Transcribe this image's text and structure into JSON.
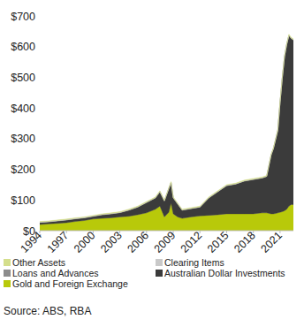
{
  "chart_data": {
    "type": "area",
    "stacked": true,
    "x": [
      1994,
      1995,
      1996,
      1997,
      1998,
      1999,
      2000,
      2001,
      2002,
      2003,
      2004,
      2005,
      2006,
      2007,
      2007.5,
      2008,
      2008.5,
      2008.75,
      2009,
      2009.5,
      2010,
      2011,
      2012,
      2013,
      2014,
      2015,
      2016,
      2017,
      2018,
      2019,
      2019.5,
      2020,
      2020.25,
      2020.5,
      2020.75,
      2021,
      2021.25,
      2021.5,
      2021.75,
      2022,
      2022.25,
      2022.5
    ],
    "xlim": [
      1994,
      2022.5
    ],
    "xticks": [
      1994,
      1997,
      2000,
      2003,
      2006,
      2009,
      2012,
      2015,
      2018,
      2021
    ],
    "ylim": [
      0,
      700
    ],
    "yticks": [
      {
        "value": 0,
        "label": "$0"
      },
      {
        "value": 100,
        "label": "$100"
      },
      {
        "value": 200,
        "label": "$200"
      },
      {
        "value": 300,
        "label": "$300"
      },
      {
        "value": 400,
        "label": "$400"
      },
      {
        "value": 500,
        "label": "$500"
      },
      {
        "value": 600,
        "label": "$600"
      },
      {
        "value": 700,
        "label": "$700"
      }
    ],
    "grid": false,
    "legend": "bottom",
    "series": [
      {
        "name": "Other Assets",
        "color": "#d4de8c",
        "values": [
          2,
          2,
          2,
          2,
          2,
          2,
          2,
          2,
          2,
          2,
          2,
          2,
          2,
          2,
          2,
          2,
          2,
          2,
          2,
          2,
          2,
          2,
          2,
          2,
          2,
          2,
          2,
          2,
          2,
          2,
          2,
          2,
          2,
          2,
          2,
          2,
          2,
          2,
          2,
          2,
          2,
          2
        ]
      },
      {
        "name": "Clearing Items",
        "color": "#c9c9c9",
        "values": [
          1,
          1,
          1,
          1,
          1,
          1,
          1,
          1,
          1,
          1,
          1,
          1,
          1,
          1,
          1,
          1,
          1,
          1,
          1,
          1,
          1,
          1,
          1,
          1,
          1,
          1,
          1,
          1,
          1,
          1,
          1,
          1,
          1,
          1,
          1,
          1,
          1,
          1,
          1,
          1,
          1,
          1
        ]
      },
      {
        "name": "Loans and Advances",
        "color": "#8c8c8c",
        "values": [
          0.5,
          0.5,
          0.5,
          0.5,
          0.5,
          0.5,
          0.5,
          0.5,
          0.5,
          0.5,
          0.5,
          0.5,
          0.5,
          0.5,
          0.5,
          0.5,
          0.5,
          0.5,
          0.5,
          0.5,
          0.5,
          0.5,
          0.5,
          0.5,
          0.5,
          0.5,
          0.5,
          0.5,
          0.5,
          0.5,
          0.5,
          0.5,
          0.5,
          0.5,
          0.5,
          0.5,
          0.5,
          0.5,
          0.5,
          0.5,
          0.5,
          0.5
        ]
      },
      {
        "name": "Australian Dollar Investments",
        "color": "#3b3b3b",
        "values": [
          6.5,
          6.5,
          7.5,
          8.5,
          8.5,
          8.5,
          8.5,
          11.5,
          12.5,
          13.5,
          19.5,
          24.5,
          33.5,
          36.5,
          46.5,
          51.5,
          76.5,
          66.5,
          51.5,
          41.5,
          26.5,
          26.5,
          28.5,
          56.5,
          74.5,
          91.5,
          96.5,
          106.5,
          111.5,
          113.5,
          118.5,
          191.5,
          211.5,
          240.5,
          268.5,
          356.5,
          434.5,
          501.5,
          536.5,
          556.5,
          541.5,
          536.5
        ]
      },
      {
        "name": "Gold and Foreign Exchange",
        "color": "#b8c90a",
        "values": [
          20,
          22,
          24,
          26,
          30,
          33,
          38,
          40,
          42,
          45,
          47,
          52,
          58,
          70,
          80,
          45,
          60,
          90,
          55,
          45,
          40,
          45,
          48,
          50,
          52,
          55,
          55,
          55,
          55,
          58,
          58,
          55,
          55,
          56,
          58,
          60,
          62,
          65,
          70,
          80,
          85,
          85
        ]
      }
    ],
    "source": "Source: ABS, RBA"
  }
}
